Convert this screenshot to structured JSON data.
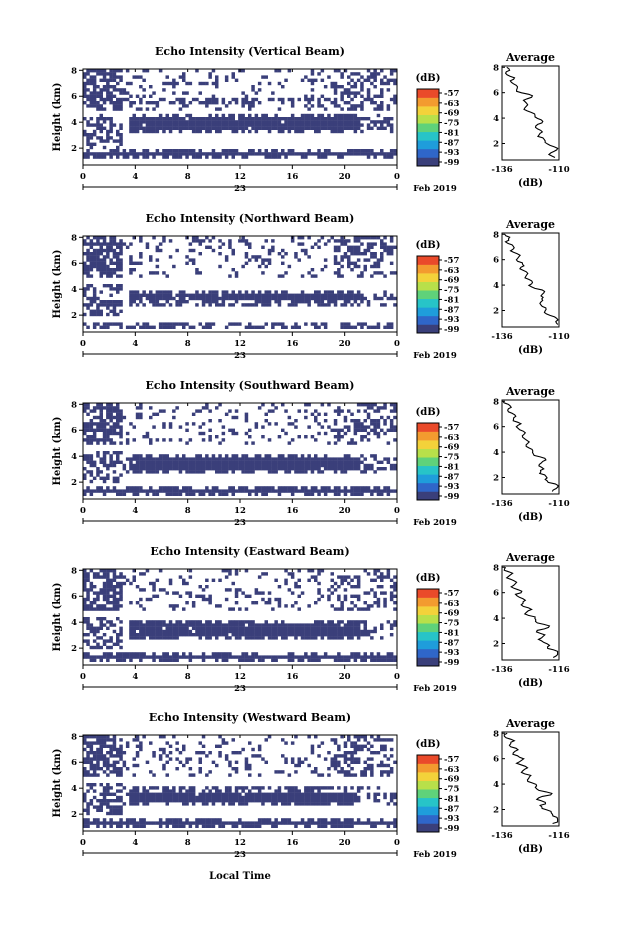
{
  "figure": {
    "xlabel": "Local Time",
    "ylabel": "Height (km)",
    "date_day": "23",
    "date_month": "Feb 2019",
    "colorbar_unit": "(dB)",
    "average_title": "Average",
    "average_xlabel": "(dB)"
  },
  "colors": {
    "background_echo": "#3a3f7a",
    "colorbar": [
      "#3a3f7a",
      "#2f66c9",
      "#1f9ddb",
      "#27c4c8",
      "#5fd27a",
      "#b8e04a",
      "#f3d23a",
      "#f39b2f",
      "#ea4a2a"
    ]
  },
  "chart_data": [
    {
      "type": "heatmap",
      "title": "Echo Intensity (Vertical Beam)",
      "x_ticks": [
        "0",
        "4",
        "8",
        "12",
        "16",
        "20",
        "0"
      ],
      "xlim": [
        0,
        24
      ],
      "y_ticks": [
        "2",
        "4",
        "6",
        "8"
      ],
      "ylim": [
        0.7,
        8.1
      ],
      "colorbar_ticks": [
        "-57",
        "-63",
        "-69",
        "-75",
        "-81",
        "-87",
        "-93",
        "-99"
      ],
      "layers_km": [
        [
          1.4,
          1.9
        ],
        [
          3.2,
          4.6
        ],
        [
          5.6,
          5.8
        ]
      ],
      "average": {
        "x_ticks": [
          "-136",
          "-110"
        ],
        "xlim": [
          -136,
          -110
        ],
        "y_ticks": [
          "2",
          "4",
          "6",
          "8"
        ],
        "ylim": [
          0.7,
          8.1
        ]
      }
    },
    {
      "type": "heatmap",
      "title": "Echo Intensity (Northward Beam)",
      "x_ticks": [
        "0",
        "4",
        "8",
        "12",
        "16",
        "20",
        "0"
      ],
      "xlim": [
        0,
        24
      ],
      "y_ticks": [
        "2",
        "4",
        "6",
        "8"
      ],
      "ylim": [
        0.7,
        8.1
      ],
      "colorbar_ticks": [
        "-57",
        "-63",
        "-69",
        "-75",
        "-81",
        "-87",
        "-93",
        "-99"
      ],
      "layers_km": [
        [
          1.0,
          1.4
        ],
        [
          2.9,
          3.8
        ]
      ],
      "average": {
        "x_ticks": [
          "-136",
          "-110"
        ],
        "xlim": [
          -136,
          -110
        ],
        "y_ticks": [
          "2",
          "4",
          "6",
          "8"
        ],
        "ylim": [
          0.7,
          8.1
        ]
      }
    },
    {
      "type": "heatmap",
      "title": "Echo Intensity (Southward Beam)",
      "x_ticks": [
        "0",
        "4",
        "8",
        "12",
        "16",
        "20",
        "0"
      ],
      "xlim": [
        0,
        24
      ],
      "y_ticks": [
        "2",
        "4",
        "6",
        "8"
      ],
      "ylim": [
        0.7,
        8.1
      ],
      "colorbar_ticks": [
        "-57",
        "-63",
        "-69",
        "-75",
        "-81",
        "-87",
        "-93",
        "-99"
      ],
      "layers_km": [
        [
          1.0,
          1.6
        ],
        [
          2.8,
          4.0
        ]
      ],
      "average": {
        "x_ticks": [
          "-136",
          "-110"
        ],
        "xlim": [
          -136,
          -110
        ],
        "y_ticks": [
          "2",
          "4",
          "6",
          "8"
        ],
        "ylim": [
          0.7,
          8.1
        ]
      }
    },
    {
      "type": "heatmap",
      "title": "Echo Intensity (Eastward Beam)",
      "x_ticks": [
        "0",
        "4",
        "8",
        "12",
        "16",
        "20",
        "0"
      ],
      "xlim": [
        0,
        24
      ],
      "y_ticks": [
        "2",
        "4",
        "6",
        "8"
      ],
      "ylim": [
        0.7,
        8.1
      ],
      "colorbar_ticks": [
        "-57",
        "-63",
        "-69",
        "-75",
        "-81",
        "-87",
        "-93",
        "-99"
      ],
      "layers_km": [
        [
          1.0,
          1.5
        ],
        [
          2.8,
          4.0
        ]
      ],
      "average": {
        "x_ticks": [
          "-136",
          "-116"
        ],
        "xlim": [
          -136,
          -116
        ],
        "y_ticks": [
          "2",
          "4",
          "6",
          "8"
        ],
        "ylim": [
          0.7,
          8.1
        ]
      }
    },
    {
      "type": "heatmap",
      "title": "Echo Intensity (Westward Beam)",
      "x_ticks": [
        "0",
        "4",
        "8",
        "12",
        "16",
        "20",
        "0"
      ],
      "xlim": [
        0,
        24
      ],
      "y_ticks": [
        "2",
        "4",
        "6",
        "8"
      ],
      "ylim": [
        0.7,
        8.1
      ],
      "colorbar_ticks": [
        "-57",
        "-63",
        "-69",
        "-75",
        "-81",
        "-87",
        "-93",
        "-99"
      ],
      "layers_km": [
        [
          1.0,
          1.6
        ],
        [
          2.7,
          3.9
        ]
      ],
      "average": {
        "x_ticks": [
          "-136",
          "-116"
        ],
        "xlim": [
          -136,
          -116
        ],
        "y_ticks": [
          "2",
          "4",
          "6",
          "8"
        ],
        "ylim": [
          0.7,
          8.1
        ]
      }
    }
  ]
}
